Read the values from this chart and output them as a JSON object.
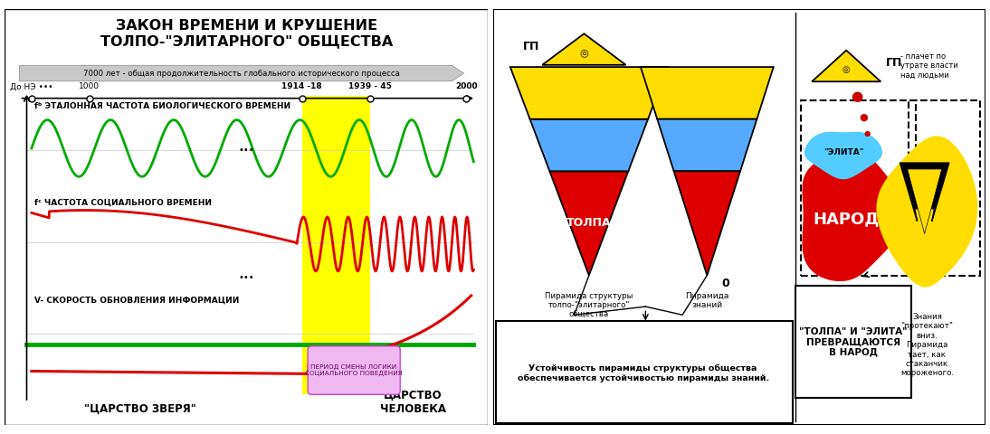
{
  "title": "ЗАКОН ВРЕМЕНИ И КРУШЕНИЕ\nТОЛПО-\"ЭЛИТАРНОГО\" ОБЩЕСТВА",
  "subtitle": "7000 лет - общая продолжительность глобального исторического процесса",
  "timeline_labels": [
    "До НЭ •••",
    "1000",
    "1914 -18",
    "1939 - 45",
    "2000"
  ],
  "label_fb": "fᵇ ЭТАЛОННАЯ ЧАСТОТА БИОЛОГИЧЕСКОГО ВРЕМЕНИ",
  "label_fc": "fᶜ ЧАСТОТА СОЦИАЛЬНОГО ВРЕМЕНИ",
  "label_v": "V- СКОРОСТЬ ОБНОВЛЕНИЯ ИНФОРМАЦИИ",
  "label_царство_зверя": "\"ЦАРСТВО ЗВЕРЯ\"",
  "label_царство_человека": "ЦАРСТВО\nЧЕЛОВЕКА",
  "label_период": "ПЕРИОД СМЕНЫ ЛОГИКИ\nСОЦИАЛЬНОГО ПОВЕДЕНИЯ",
  "bg_color": "#ffffff",
  "green_color": "#00aa00",
  "red_color": "#dd0000",
  "yellow_color": "#ffff00"
}
